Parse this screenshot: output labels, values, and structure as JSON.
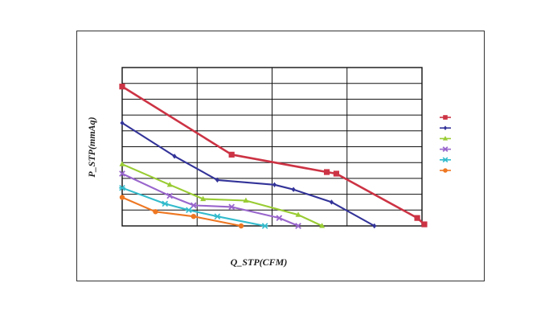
{
  "chart_data": {
    "type": "line",
    "title": "",
    "xlabel": "Q_STP(CFM)",
    "ylabel": "P_STP(mmAq)",
    "xlim": [
      0,
      6.3
    ],
    "ylim": [
      0,
      10
    ],
    "grid": true,
    "legend_position": "right",
    "x_ticks": [],
    "y_ticks": [],
    "series": [
      {
        "color": "#cc3344",
        "marker": "square",
        "points": [
          [
            0,
            8.8
          ],
          [
            2.3,
            4.5
          ],
          [
            4.3,
            3.4
          ],
          [
            4.5,
            3.3
          ],
          [
            6.2,
            0.5
          ],
          [
            6.35,
            0.1
          ]
        ]
      },
      {
        "color": "#333399",
        "marker": "diamond",
        "points": [
          [
            0,
            6.5
          ],
          [
            1.1,
            4.4
          ],
          [
            2.0,
            2.9
          ],
          [
            3.2,
            2.6
          ],
          [
            3.6,
            2.3
          ],
          [
            4.4,
            1.5
          ],
          [
            5.3,
            0
          ]
        ]
      },
      {
        "color": "#99cc33",
        "marker": "triangle",
        "points": [
          [
            0,
            3.9
          ],
          [
            1.0,
            2.6
          ],
          [
            1.7,
            1.7
          ],
          [
            2.6,
            1.6
          ],
          [
            3.7,
            0.7
          ],
          [
            4.2,
            0
          ]
        ]
      },
      {
        "color": "#9966cc",
        "marker": "x",
        "points": [
          [
            0,
            3.3
          ],
          [
            1.0,
            1.9
          ],
          [
            1.5,
            1.3
          ],
          [
            2.3,
            1.2
          ],
          [
            3.3,
            0.5
          ],
          [
            3.7,
            0
          ]
        ]
      },
      {
        "color": "#33bbcc",
        "marker": "star",
        "points": [
          [
            0,
            2.4
          ],
          [
            0.9,
            1.4
          ],
          [
            1.4,
            1.0
          ],
          [
            2.0,
            0.6
          ],
          [
            3.0,
            0
          ]
        ]
      },
      {
        "color": "#ee7722",
        "marker": "circle",
        "points": [
          [
            0,
            1.8
          ],
          [
            0.7,
            0.9
          ],
          [
            1.5,
            0.6
          ],
          [
            2.5,
            0
          ]
        ]
      }
    ]
  }
}
